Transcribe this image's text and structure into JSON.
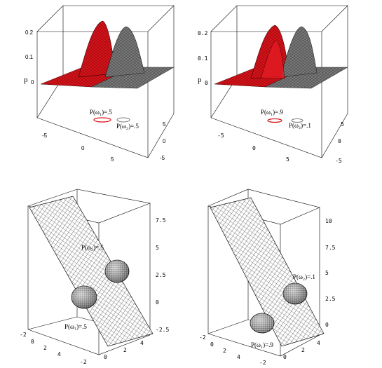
{
  "colors": {
    "class1": "#d8141c",
    "class2": "#7a7a7a",
    "mesh": "#1a1a1a"
  },
  "panels": [
    {
      "id": "top-left",
      "type": "3d-density-surface",
      "z_axis_label": "p",
      "z_ticks": [
        "0.2",
        "0.1",
        "0"
      ],
      "x_ticks": [
        "-5",
        "0",
        "5"
      ],
      "y_ticks": [
        "5",
        "0",
        "-5"
      ],
      "labels": [
        "P(ω₁)=.5",
        "P(ω₂)=.5"
      ]
    },
    {
      "id": "top-right",
      "type": "3d-density-surface",
      "z_axis_label": "p",
      "z_ticks": [
        "0.2",
        "0.1",
        "0"
      ],
      "x_ticks": [
        "-5",
        "0",
        "5"
      ],
      "y_ticks": [
        "5",
        "0",
        "-5"
      ],
      "labels": [
        "P(ω₁)=.9",
        "P(ω₂)=.1"
      ]
    },
    {
      "id": "bottom-left",
      "type": "3d-ellipsoids-with-plane",
      "z_ticks": [
        "7.5",
        "5",
        "2.5",
        "0",
        "-2.5"
      ],
      "x_ticks": [
        "-2",
        "0",
        "2",
        "4"
      ],
      "y_ticks": [
        "-2",
        "0",
        "2",
        "4"
      ],
      "labels": [
        "P(ω₂)=.5",
        "P(ω₁)=.5"
      ]
    },
    {
      "id": "bottom-right",
      "type": "3d-ellipsoids-with-plane",
      "z_ticks": [
        "10",
        "7.5",
        "5",
        "2.5",
        "0"
      ],
      "x_ticks": [
        "-2",
        "0",
        "2",
        "4"
      ],
      "y_ticks": [
        "-2",
        "0",
        "2",
        "4"
      ],
      "labels": [
        "P(ω₂)=.1",
        "P(ω₁)=.9"
      ]
    }
  ]
}
